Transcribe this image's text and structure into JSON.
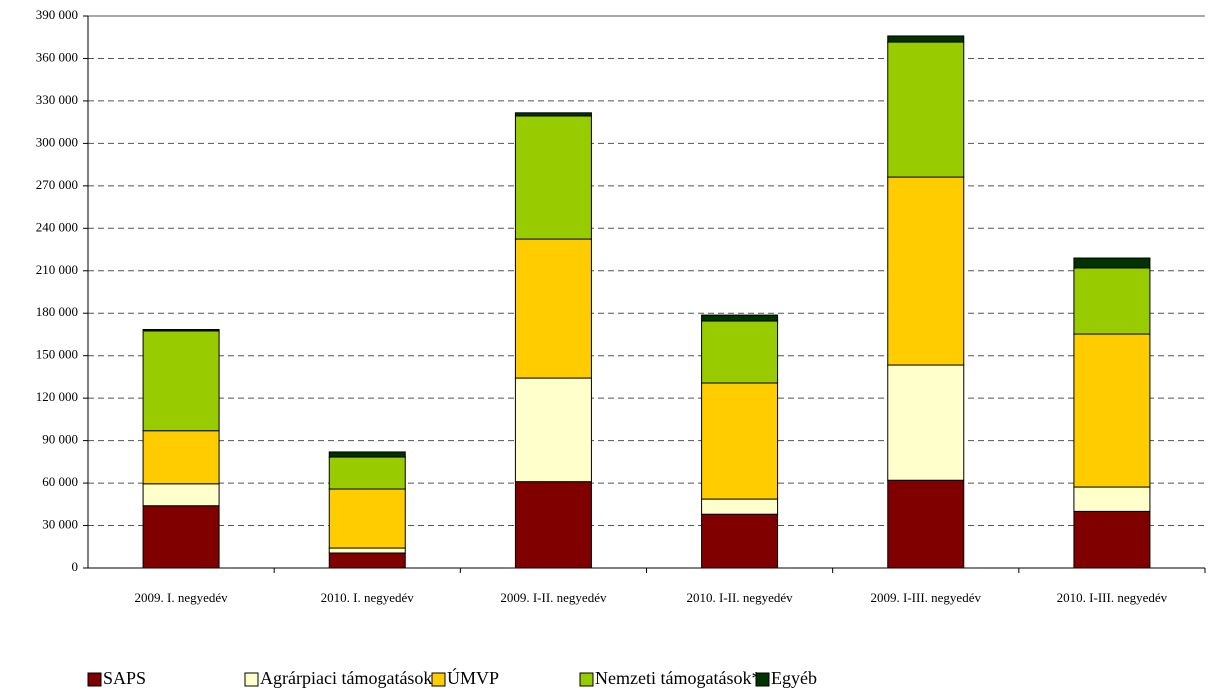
{
  "chart_data": {
    "type": "stacked_bar",
    "categories": [
      "2009. I. negyedév",
      "2010. I. negyedév",
      "2009. I-II. negyedév",
      "2010. I-II. negyedév",
      "2009. I-III. negyedév",
      "2010. I-III. negyedév"
    ],
    "series": [
      {
        "name": "SAPS",
        "color": "#800000",
        "values": [
          44000,
          10600,
          61000,
          38000,
          62000,
          40000
        ]
      },
      {
        "name": "Agrárpiaci támogatások",
        "color": "#ffffcc",
        "values": [
          15500,
          3500,
          73200,
          10700,
          81400,
          17200
        ]
      },
      {
        "name": "ÚMVP",
        "color": "#ffcc00",
        "values": [
          37500,
          41700,
          98200,
          82000,
          132800,
          108100
        ]
      },
      {
        "name": "Nemzeti támogatások*",
        "color": "#99cc00",
        "values": [
          70500,
          22600,
          87000,
          43800,
          95400,
          46700
        ]
      },
      {
        "name": "Egyéb",
        "color": "#003300",
        "values": [
          1000,
          3600,
          2200,
          4200,
          4300,
          7000
        ]
      }
    ],
    "ylim": [
      0,
      390000
    ],
    "yticks": [
      {
        "value": 0,
        "label": "0"
      },
      {
        "value": 30000,
        "label": "30 000"
      },
      {
        "value": 60000,
        "label": "60 000"
      },
      {
        "value": 90000,
        "label": "90 000"
      },
      {
        "value": 120000,
        "label": "120 000"
      },
      {
        "value": 150000,
        "label": "150 000"
      },
      {
        "value": 180000,
        "label": "180 000"
      },
      {
        "value": 210000,
        "label": "210 000"
      },
      {
        "value": 240000,
        "label": "240 000"
      },
      {
        "value": 270000,
        "label": "270 000"
      },
      {
        "value": 300000,
        "label": "300 000"
      },
      {
        "value": 330000,
        "label": "330 000"
      },
      {
        "value": 360000,
        "label": "360 000"
      },
      {
        "value": 390000,
        "label": "390 000"
      }
    ],
    "grid": true,
    "legend": "bottom"
  }
}
